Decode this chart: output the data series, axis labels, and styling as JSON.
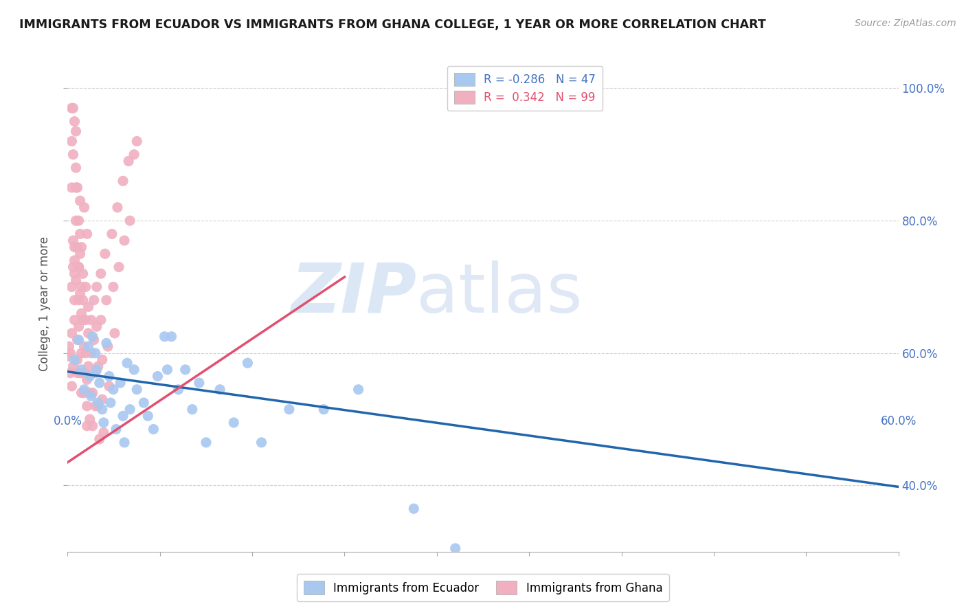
{
  "title": "IMMIGRANTS FROM ECUADOR VS IMMIGRANTS FROM GHANA COLLEGE, 1 YEAR OR MORE CORRELATION CHART",
  "source": "Source: ZipAtlas.com",
  "ylabel": "College, 1 year or more",
  "xlim": [
    0.0,
    0.6
  ],
  "ylim": [
    0.3,
    1.05
  ],
  "yticks": [
    0.4,
    0.6,
    0.8,
    1.0
  ],
  "ytick_labels": [
    "40.0%",
    "60.0%",
    "80.0%",
    "100.0%"
  ],
  "ecuador_color": "#a8c8f0",
  "ghana_color": "#f0b0c0",
  "ecuador_line_color": "#2166ac",
  "ghana_line_color": "#e05070",
  "ecuador_R": -0.286,
  "ecuador_N": 47,
  "ghana_R": 0.342,
  "ghana_N": 99,
  "ecuador_label": "Immigrants from Ecuador",
  "ghana_label": "Immigrants from Ghana",
  "watermark_zip": "ZIP",
  "watermark_atlas": "atlas",
  "background_color": "#ffffff",
  "ecuador_line_x": [
    0.0,
    0.6
  ],
  "ecuador_line_y": [
    0.572,
    0.398
  ],
  "ghana_line_x": [
    0.0,
    0.2
  ],
  "ghana_line_y": [
    0.435,
    0.715
  ],
  "ecuador_scatter": [
    [
      0.005,
      0.59
    ],
    [
      0.008,
      0.62
    ],
    [
      0.01,
      0.575
    ],
    [
      0.012,
      0.545
    ],
    [
      0.015,
      0.61
    ],
    [
      0.016,
      0.565
    ],
    [
      0.017,
      0.535
    ],
    [
      0.018,
      0.625
    ],
    [
      0.02,
      0.6
    ],
    [
      0.021,
      0.575
    ],
    [
      0.022,
      0.525
    ],
    [
      0.023,
      0.555
    ],
    [
      0.025,
      0.515
    ],
    [
      0.026,
      0.495
    ],
    [
      0.028,
      0.615
    ],
    [
      0.03,
      0.565
    ],
    [
      0.031,
      0.525
    ],
    [
      0.033,
      0.545
    ],
    [
      0.035,
      0.485
    ],
    [
      0.038,
      0.555
    ],
    [
      0.04,
      0.505
    ],
    [
      0.041,
      0.465
    ],
    [
      0.043,
      0.585
    ],
    [
      0.045,
      0.515
    ],
    [
      0.048,
      0.575
    ],
    [
      0.05,
      0.545
    ],
    [
      0.055,
      0.525
    ],
    [
      0.058,
      0.505
    ],
    [
      0.062,
      0.485
    ],
    [
      0.065,
      0.565
    ],
    [
      0.07,
      0.625
    ],
    [
      0.072,
      0.575
    ],
    [
      0.075,
      0.625
    ],
    [
      0.08,
      0.545
    ],
    [
      0.085,
      0.575
    ],
    [
      0.09,
      0.515
    ],
    [
      0.095,
      0.555
    ],
    [
      0.1,
      0.465
    ],
    [
      0.11,
      0.545
    ],
    [
      0.12,
      0.495
    ],
    [
      0.13,
      0.585
    ],
    [
      0.14,
      0.465
    ],
    [
      0.16,
      0.515
    ],
    [
      0.185,
      0.515
    ],
    [
      0.21,
      0.545
    ],
    [
      0.25,
      0.365
    ],
    [
      0.28,
      0.305
    ]
  ],
  "ghana_scatter": [
    [
      0.0,
      0.595
    ],
    [
      0.001,
      0.61
    ],
    [
      0.002,
      0.6
    ],
    [
      0.002,
      0.57
    ],
    [
      0.003,
      0.55
    ],
    [
      0.003,
      0.63
    ],
    [
      0.003,
      0.7
    ],
    [
      0.004,
      0.73
    ],
    [
      0.004,
      0.58
    ],
    [
      0.005,
      0.65
    ],
    [
      0.005,
      0.68
    ],
    [
      0.005,
      0.72
    ],
    [
      0.005,
      0.76
    ],
    [
      0.006,
      0.8
    ],
    [
      0.006,
      0.85
    ],
    [
      0.006,
      0.88
    ],
    [
      0.006,
      0.935
    ],
    [
      0.007,
      0.62
    ],
    [
      0.007,
      0.59
    ],
    [
      0.007,
      0.57
    ],
    [
      0.008,
      0.64
    ],
    [
      0.008,
      0.68
    ],
    [
      0.008,
      0.73
    ],
    [
      0.009,
      0.78
    ],
    [
      0.009,
      0.83
    ],
    [
      0.009,
      0.57
    ],
    [
      0.01,
      0.54
    ],
    [
      0.01,
      0.66
    ],
    [
      0.01,
      0.7
    ],
    [
      0.01,
      0.6
    ],
    [
      0.011,
      0.57
    ],
    [
      0.011,
      0.68
    ],
    [
      0.011,
      0.65
    ],
    [
      0.012,
      0.61
    ],
    [
      0.012,
      0.57
    ],
    [
      0.012,
      0.54
    ],
    [
      0.013,
      0.7
    ],
    [
      0.013,
      0.65
    ],
    [
      0.013,
      0.6
    ],
    [
      0.014,
      0.56
    ],
    [
      0.014,
      0.52
    ],
    [
      0.014,
      0.49
    ],
    [
      0.015,
      0.67
    ],
    [
      0.015,
      0.63
    ],
    [
      0.015,
      0.58
    ],
    [
      0.016,
      0.54
    ],
    [
      0.016,
      0.5
    ],
    [
      0.017,
      0.65
    ],
    [
      0.017,
      0.6
    ],
    [
      0.018,
      0.54
    ],
    [
      0.018,
      0.49
    ],
    [
      0.019,
      0.68
    ],
    [
      0.019,
      0.62
    ],
    [
      0.02,
      0.57
    ],
    [
      0.02,
      0.52
    ],
    [
      0.021,
      0.7
    ],
    [
      0.021,
      0.64
    ],
    [
      0.022,
      0.58
    ],
    [
      0.022,
      0.52
    ],
    [
      0.023,
      0.47
    ],
    [
      0.024,
      0.72
    ],
    [
      0.024,
      0.65
    ],
    [
      0.025,
      0.59
    ],
    [
      0.025,
      0.53
    ],
    [
      0.026,
      0.48
    ],
    [
      0.027,
      0.75
    ],
    [
      0.028,
      0.68
    ],
    [
      0.029,
      0.61
    ],
    [
      0.03,
      0.55
    ],
    [
      0.032,
      0.78
    ],
    [
      0.033,
      0.7
    ],
    [
      0.034,
      0.63
    ],
    [
      0.036,
      0.82
    ],
    [
      0.037,
      0.73
    ],
    [
      0.04,
      0.86
    ],
    [
      0.041,
      0.77
    ],
    [
      0.044,
      0.89
    ],
    [
      0.045,
      0.8
    ],
    [
      0.048,
      0.9
    ],
    [
      0.05,
      0.92
    ],
    [
      0.003,
      0.97
    ],
    [
      0.004,
      0.97
    ],
    [
      0.005,
      0.95
    ],
    [
      0.003,
      0.92
    ],
    [
      0.004,
      0.9
    ],
    [
      0.007,
      0.85
    ],
    [
      0.008,
      0.8
    ],
    [
      0.009,
      0.75
    ],
    [
      0.011,
      0.72
    ],
    [
      0.014,
      0.78
    ],
    [
      0.003,
      0.85
    ],
    [
      0.004,
      0.77
    ],
    [
      0.005,
      0.74
    ],
    [
      0.006,
      0.71
    ],
    [
      0.007,
      0.76
    ],
    [
      0.008,
      0.73
    ],
    [
      0.009,
      0.69
    ],
    [
      0.01,
      0.76
    ],
    [
      0.012,
      0.82
    ]
  ]
}
